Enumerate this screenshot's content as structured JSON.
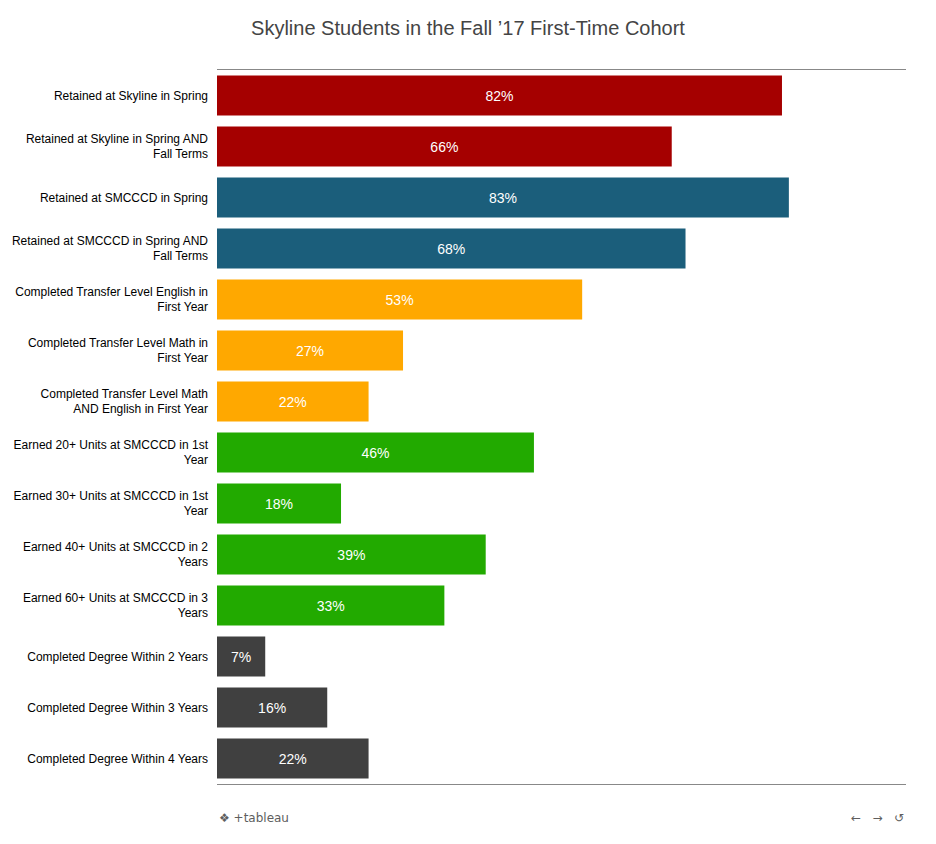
{
  "chart_data": {
    "type": "bar",
    "orientation": "horizontal",
    "title": "Skyline Students in the Fall ’17 First-Time Cohort",
    "categories": [
      "Retained at Skyline in Spring",
      "Retained at Skyline in Spring AND\nFall Terms",
      "Retained at SMCCCD in Spring",
      "Retained at SMCCCD in Spring AND\nFall Terms",
      "Completed Transfer Level English in\nFirst Year",
      "Completed Transfer Level Math in\nFirst Year",
      "Completed Transfer Level Math\nAND English in First Year",
      "Earned 20+ Units at SMCCCD in 1st\nYear",
      "Earned 30+ Units at SMCCCD in 1st\nYear",
      "Earned 40+ Units at SMCCCD in 2\nYears",
      "Earned 60+ Units at SMCCCD in 3\nYears",
      "Completed Degree Within 2 Years",
      "Completed Degree Within 3 Years",
      "Completed Degree Within 4 Years"
    ],
    "values": [
      82,
      66,
      83,
      68,
      53,
      27,
      22,
      46,
      18,
      39,
      33,
      7,
      16,
      22
    ],
    "value_labels": [
      "82%",
      "66%",
      "83%",
      "68%",
      "53%",
      "27%",
      "22%",
      "46%",
      "18%",
      "39%",
      "33%",
      "7%",
      "16%",
      "22%"
    ],
    "colors": [
      "#A50000",
      "#A50000",
      "#1B5E7B",
      "#1B5E7B",
      "#FFA800",
      "#FFA800",
      "#FFA800",
      "#22AA00",
      "#22AA00",
      "#22AA00",
      "#22AA00",
      "#404040",
      "#404040",
      "#404040"
    ],
    "xlim": [
      0,
      100
    ],
    "tick_labels": "y",
    "data_labels": true,
    "annotations": [
      "❖ +tableau",
      "←   →   ↺"
    ]
  }
}
